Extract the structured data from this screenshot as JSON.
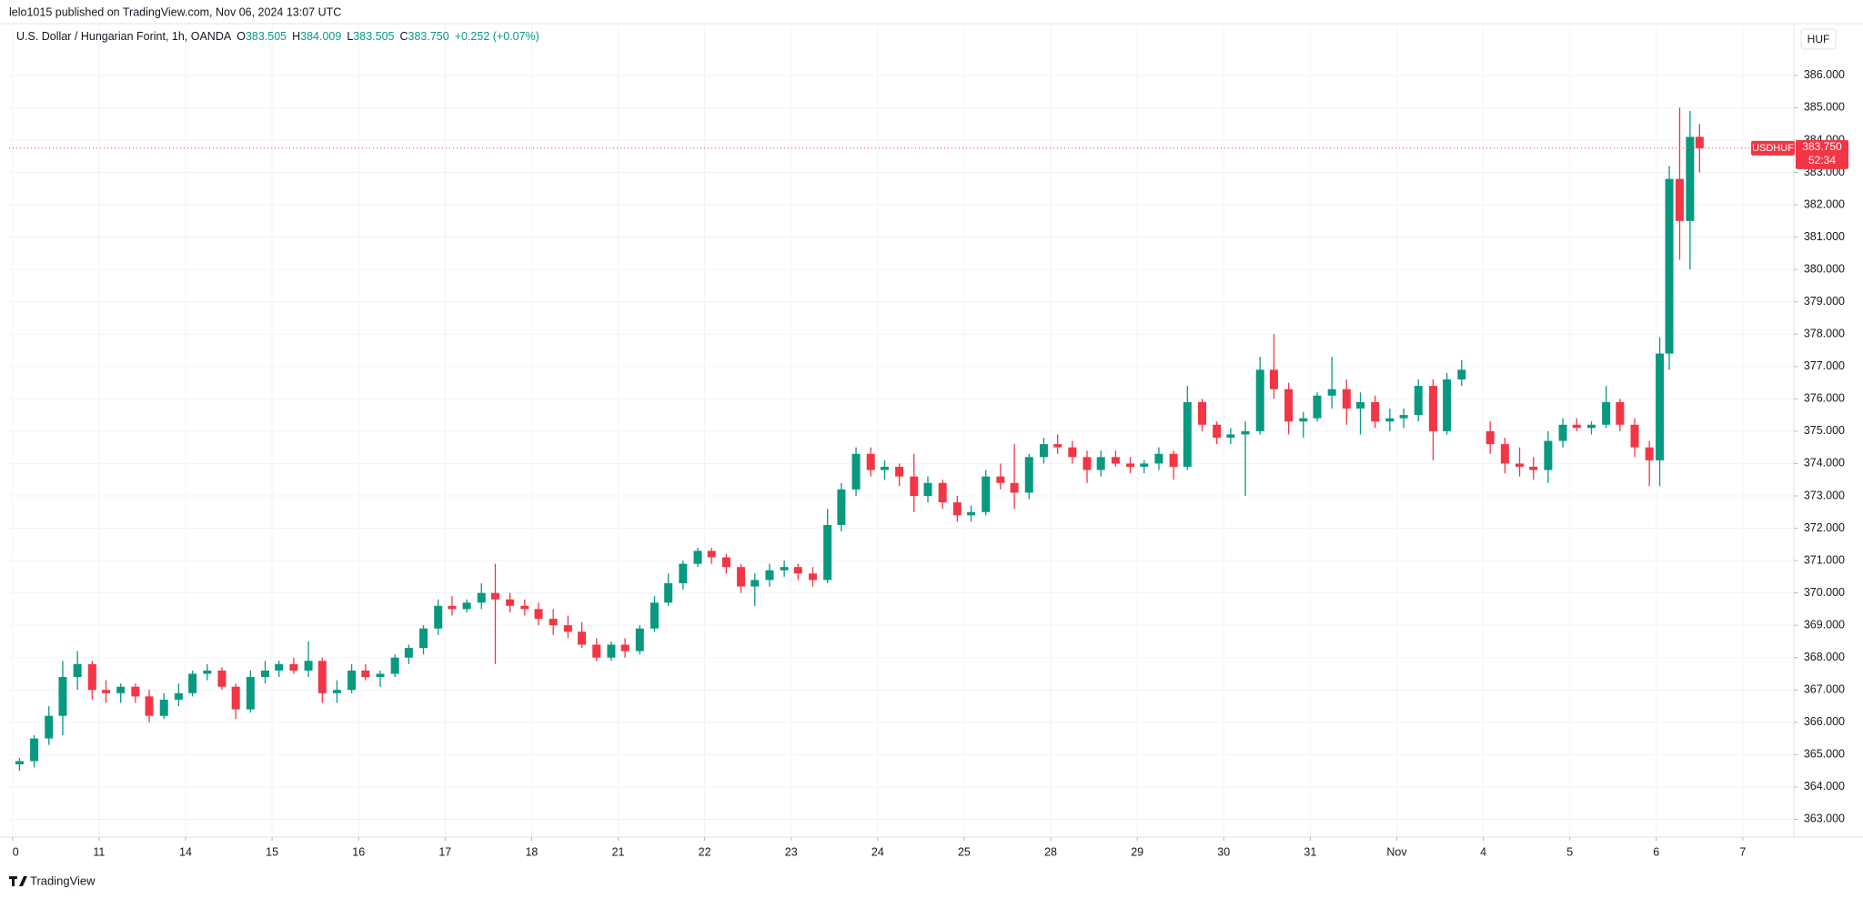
{
  "header": {
    "published": "lelo1015 published on TradingView.com, Nov 06, 2024 13:07 UTC"
  },
  "footer": {
    "brand": "TradingView"
  },
  "chart_data": {
    "type": "candlestick",
    "title": "U.S. Dollar / Hungarian Forint, 1h, OANDA",
    "ohlc_legend": [
      {
        "key": "O",
        "value": "383.505"
      },
      {
        "key": "H",
        "value": "384.009"
      },
      {
        "key": "L",
        "value": "383.505"
      },
      {
        "key": "C",
        "value": "383.750"
      }
    ],
    "change": "+0.252 (+0.07%)",
    "currency": "HUF",
    "symbol": "USDHUF",
    "last_price": {
      "value": 383.75,
      "label": "383.750"
    },
    "countdown": "52:34",
    "up_color": "#089981",
    "down_color": "#f23645",
    "grid": true,
    "xlim": [
      -0.04,
      20.59
    ],
    "ylim": [
      362.45,
      387.6
    ],
    "xticks": [
      0,
      {
        "value": 1,
        "label": "11"
      },
      {
        "value": 2,
        "label": "14"
      },
      {
        "value": 3,
        "label": "15"
      },
      {
        "value": 4,
        "label": "16"
      },
      {
        "value": 5,
        "label": "17"
      },
      {
        "value": 6,
        "label": "18"
      },
      {
        "value": 7,
        "label": "21"
      },
      {
        "value": 8,
        "label": "22"
      },
      {
        "value": 9,
        "label": "23"
      },
      {
        "value": 10,
        "label": "24"
      },
      {
        "value": 11,
        "label": "25"
      },
      {
        "value": 12,
        "label": "28"
      },
      {
        "value": 13,
        "label": "29"
      },
      {
        "value": 14,
        "label": "30"
      },
      {
        "value": 15,
        "label": "31"
      },
      {
        "value": 16,
        "label": "Nov"
      },
      {
        "value": 17,
        "label": "4"
      },
      {
        "value": 18,
        "label": "5"
      },
      {
        "value": 19,
        "label": "6"
      },
      {
        "value": 20,
        "label": "7"
      }
    ],
    "yticks": [
      {
        "value": 363,
        "label": "363.000"
      },
      {
        "value": 364,
        "label": "364.000"
      },
      {
        "value": 365,
        "label": "365.000"
      },
      {
        "value": 366,
        "label": "366.000"
      },
      {
        "value": 367,
        "label": "367.000"
      },
      {
        "value": 368,
        "label": "368.000"
      },
      {
        "value": 369,
        "label": "369.000"
      },
      {
        "value": 370,
        "label": "370.000"
      },
      {
        "value": 371,
        "label": "371.000"
      },
      {
        "value": 372,
        "label": "372.000"
      },
      {
        "value": 373,
        "label": "373.000"
      },
      {
        "value": 374,
        "label": "374.000"
      },
      {
        "value": 375,
        "label": "375.000"
      },
      {
        "value": 376,
        "label": "376.000"
      },
      {
        "value": 377,
        "label": "377.000"
      },
      {
        "value": 378,
        "label": "378.000"
      },
      {
        "value": 379,
        "label": "379.000"
      },
      {
        "value": 380,
        "label": "380.000"
      },
      {
        "value": 381,
        "label": "381.000"
      },
      {
        "value": 382,
        "label": "382.000"
      },
      {
        "value": 383,
        "label": "383.000"
      },
      {
        "value": 384,
        "label": "384.000"
      },
      {
        "value": 385,
        "label": "385.000"
      },
      {
        "value": 386,
        "label": "386.000"
      }
    ],
    "x": [
      0.08,
      0.25,
      0.42,
      0.58,
      0.75,
      0.92,
      1.08,
      1.25,
      1.42,
      1.58,
      1.75,
      1.92,
      2.08,
      2.25,
      2.42,
      2.58,
      2.75,
      2.92,
      3.08,
      3.25,
      3.42,
      3.58,
      3.75,
      3.92,
      4.08,
      4.25,
      4.42,
      4.58,
      4.75,
      4.92,
      5.08,
      5.25,
      5.42,
      5.58,
      5.75,
      5.92,
      6.08,
      6.25,
      6.42,
      6.58,
      6.75,
      6.92,
      7.08,
      7.25,
      7.42,
      7.58,
      7.75,
      7.92,
      8.08,
      8.25,
      8.42,
      8.58,
      8.75,
      8.92,
      9.08,
      9.25,
      9.42,
      9.58,
      9.75,
      9.92,
      10.08,
      10.25,
      10.42,
      10.58,
      10.75,
      10.92,
      11.08,
      11.25,
      11.42,
      11.58,
      11.75,
      11.92,
      12.08,
      12.25,
      12.42,
      12.58,
      12.75,
      12.92,
      13.08,
      13.25,
      13.42,
      13.58,
      13.75,
      13.92,
      14.08,
      14.25,
      14.42,
      14.58,
      14.75,
      14.92,
      15.08,
      15.25,
      15.42,
      15.58,
      15.75,
      15.92,
      16.08,
      16.25,
      16.42,
      16.58,
      16.75,
      17.08,
      17.25,
      17.42,
      17.58,
      17.75,
      17.92,
      18.08,
      18.25,
      18.42,
      18.58,
      18.75,
      18.92,
      19.04,
      19.15,
      19.27,
      19.39,
      19.5
    ],
    "ohlc": [
      [
        364.7,
        364.9,
        364.5,
        364.8
      ],
      [
        364.8,
        365.6,
        364.6,
        365.5
      ],
      [
        365.5,
        366.5,
        365.3,
        366.2
      ],
      [
        366.2,
        367.9,
        365.6,
        367.4
      ],
      [
        367.4,
        368.2,
        367.0,
        367.8
      ],
      [
        367.8,
        367.9,
        366.7,
        367.0
      ],
      [
        367.0,
        367.3,
        366.6,
        366.9
      ],
      [
        366.9,
        367.2,
        366.6,
        367.1
      ],
      [
        367.1,
        367.2,
        366.6,
        366.8
      ],
      [
        366.8,
        367.0,
        366.0,
        366.2
      ],
      [
        366.2,
        366.9,
        366.1,
        366.7
      ],
      [
        366.7,
        367.2,
        366.5,
        366.9
      ],
      [
        366.9,
        367.6,
        366.8,
        367.5
      ],
      [
        367.5,
        367.8,
        367.3,
        367.6
      ],
      [
        367.6,
        367.7,
        367.0,
        367.1
      ],
      [
        367.1,
        367.2,
        366.1,
        366.4
      ],
      [
        366.4,
        367.6,
        366.3,
        367.4
      ],
      [
        367.4,
        367.9,
        367.2,
        367.6
      ],
      [
        367.6,
        367.9,
        367.4,
        367.8
      ],
      [
        367.8,
        368.0,
        367.5,
        367.6
      ],
      [
        367.6,
        368.5,
        367.4,
        367.9
      ],
      [
        367.9,
        368.0,
        366.6,
        366.9
      ],
      [
        366.9,
        367.3,
        366.6,
        367.0
      ],
      [
        367.0,
        367.8,
        366.9,
        367.6
      ],
      [
        367.6,
        367.8,
        367.3,
        367.4
      ],
      [
        367.4,
        367.6,
        367.1,
        367.5
      ],
      [
        367.5,
        368.1,
        367.4,
        368.0
      ],
      [
        368.0,
        368.4,
        367.8,
        368.3
      ],
      [
        368.3,
        369.0,
        368.1,
        368.9
      ],
      [
        368.9,
        369.8,
        368.7,
        369.6
      ],
      [
        369.6,
        369.9,
        369.3,
        369.5
      ],
      [
        369.5,
        369.8,
        369.4,
        369.7
      ],
      [
        369.7,
        370.3,
        369.5,
        370.0
      ],
      [
        370.0,
        370.9,
        367.8,
        369.8
      ],
      [
        369.8,
        370.0,
        369.4,
        369.6
      ],
      [
        369.6,
        369.8,
        369.3,
        369.5
      ],
      [
        369.5,
        369.7,
        369.0,
        369.2
      ],
      [
        369.2,
        369.5,
        368.7,
        369.0
      ],
      [
        369.0,
        369.3,
        368.6,
        368.8
      ],
      [
        368.8,
        369.1,
        368.3,
        368.4
      ],
      [
        368.4,
        368.6,
        367.9,
        368.0
      ],
      [
        368.0,
        368.5,
        367.9,
        368.4
      ],
      [
        368.4,
        368.6,
        368.0,
        368.2
      ],
      [
        368.2,
        369.0,
        368.1,
        368.9
      ],
      [
        368.9,
        369.9,
        368.8,
        369.7
      ],
      [
        369.7,
        370.6,
        369.6,
        370.3
      ],
      [
        370.3,
        371.0,
        370.1,
        370.9
      ],
      [
        370.9,
        371.4,
        370.8,
        371.3
      ],
      [
        371.3,
        371.4,
        370.9,
        371.1
      ],
      [
        371.1,
        371.2,
        370.6,
        370.8
      ],
      [
        370.8,
        370.9,
        370.0,
        370.2
      ],
      [
        370.2,
        370.6,
        369.6,
        370.4
      ],
      [
        370.4,
        370.9,
        370.2,
        370.7
      ],
      [
        370.7,
        371.0,
        370.5,
        370.8
      ],
      [
        370.8,
        370.9,
        370.4,
        370.6
      ],
      [
        370.6,
        370.8,
        370.2,
        370.4
      ],
      [
        370.4,
        372.6,
        370.3,
        372.1
      ],
      [
        372.1,
        373.4,
        371.9,
        373.2
      ],
      [
        373.2,
        374.5,
        373.0,
        374.3
      ],
      [
        374.3,
        374.5,
        373.6,
        373.8
      ],
      [
        373.8,
        374.1,
        373.5,
        373.9
      ],
      [
        373.9,
        374.0,
        373.3,
        373.6
      ],
      [
        373.6,
        374.3,
        372.5,
        373.0
      ],
      [
        373.0,
        373.6,
        372.8,
        373.4
      ],
      [
        373.4,
        373.5,
        372.6,
        372.8
      ],
      [
        372.8,
        373.0,
        372.2,
        372.4
      ],
      [
        372.4,
        372.7,
        372.2,
        372.5
      ],
      [
        372.5,
        373.8,
        372.4,
        373.6
      ],
      [
        373.6,
        374.0,
        373.2,
        373.4
      ],
      [
        373.4,
        374.6,
        372.6,
        373.1
      ],
      [
        373.1,
        374.3,
        372.9,
        374.2
      ],
      [
        374.2,
        374.8,
        374.0,
        374.6
      ],
      [
        374.6,
        374.9,
        374.3,
        374.5
      ],
      [
        374.5,
        374.7,
        374.0,
        374.2
      ],
      [
        374.2,
        374.4,
        373.4,
        373.8
      ],
      [
        373.8,
        374.4,
        373.6,
        374.2
      ],
      [
        374.2,
        374.4,
        373.9,
        374.0
      ],
      [
        374.0,
        374.2,
        373.7,
        373.9
      ],
      [
        373.9,
        374.1,
        373.7,
        374.0
      ],
      [
        374.0,
        374.5,
        373.8,
        374.3
      ],
      [
        374.3,
        374.4,
        373.5,
        373.9
      ],
      [
        373.9,
        376.4,
        373.8,
        375.9
      ],
      [
        375.9,
        376.0,
        375.0,
        375.2
      ],
      [
        375.2,
        375.3,
        374.6,
        374.8
      ],
      [
        374.8,
        375.1,
        374.6,
        374.9
      ],
      [
        374.9,
        375.3,
        373.0,
        375.0
      ],
      [
        375.0,
        377.3,
        374.9,
        376.9
      ],
      [
        376.9,
        378.0,
        376.0,
        376.3
      ],
      [
        376.3,
        376.5,
        374.9,
        375.3
      ],
      [
        375.3,
        375.6,
        374.8,
        375.4
      ],
      [
        375.4,
        376.2,
        375.3,
        376.1
      ],
      [
        376.1,
        377.3,
        375.7,
        376.3
      ],
      [
        376.3,
        376.6,
        375.2,
        375.7
      ],
      [
        375.7,
        376.2,
        374.9,
        375.9
      ],
      [
        375.9,
        376.1,
        375.1,
        375.3
      ],
      [
        375.3,
        375.7,
        375.0,
        375.4
      ],
      [
        375.4,
        375.7,
        375.1,
        375.5
      ],
      [
        375.5,
        376.6,
        375.3,
        376.4
      ],
      [
        376.4,
        376.6,
        374.1,
        375.0
      ],
      [
        375.0,
        376.8,
        374.9,
        376.6
      ],
      [
        376.6,
        377.2,
        376.4,
        376.9
      ],
      [
        375.0,
        375.3,
        374.3,
        374.6
      ],
      [
        374.6,
        374.8,
        373.7,
        374.0
      ],
      [
        374.0,
        374.5,
        373.6,
        373.9
      ],
      [
        373.9,
        374.2,
        373.5,
        373.8
      ],
      [
        373.8,
        375.0,
        373.4,
        374.7
      ],
      [
        374.7,
        375.4,
        374.5,
        375.2
      ],
      [
        375.2,
        375.4,
        375.0,
        375.1
      ],
      [
        375.1,
        375.3,
        374.9,
        375.2
      ],
      [
        375.2,
        376.4,
        375.1,
        375.9
      ],
      [
        375.9,
        376.0,
        375.0,
        375.2
      ],
      [
        375.2,
        375.4,
        374.2,
        374.5
      ],
      [
        374.5,
        374.7,
        373.3,
        374.1
      ],
      [
        374.1,
        377.9,
        373.3,
        377.4
      ],
      [
        377.4,
        383.2,
        376.9,
        382.8
      ],
      [
        382.8,
        385.0,
        380.3,
        381.5
      ],
      [
        381.5,
        384.9,
        380.0,
        384.1
      ],
      [
        384.1,
        384.5,
        383.0,
        383.75
      ]
    ]
  }
}
